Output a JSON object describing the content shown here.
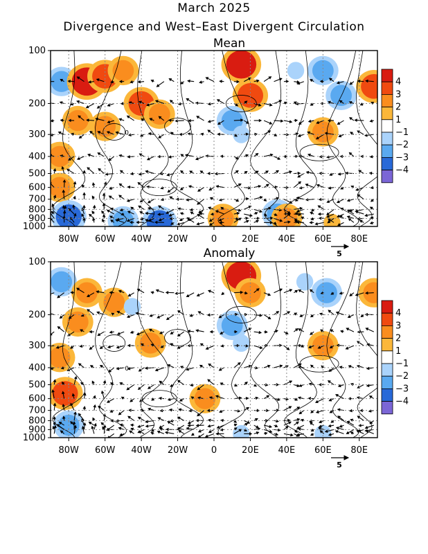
{
  "header": {
    "title": "March 2025",
    "subtitle": "Divergence and West–East Divergent Circulation"
  },
  "chart_data": [
    {
      "type": "heatmap",
      "title": "Mean",
      "x_ticks": [
        "80W",
        "60W",
        "40W",
        "20W",
        "0",
        "20E",
        "40E",
        "60E",
        "80E"
      ],
      "x_values": [
        -80,
        -60,
        -40,
        -20,
        0,
        20,
        40,
        60,
        80
      ],
      "xlim": [
        -90,
        90
      ],
      "y_ticks": [
        "100",
        "200",
        "300",
        "400",
        "500",
        "600",
        "700",
        "800",
        "900",
        "1000"
      ],
      "y_values": [
        100,
        200,
        300,
        400,
        500,
        600,
        700,
        800,
        900,
        1000
      ],
      "ylim": [
        1000,
        100
      ],
      "y_scale": "log",
      "contour_label": "0",
      "reference_vector": "5",
      "cells": [
        {
          "lon": -84,
          "p": 150,
          "v": -2
        },
        {
          "lon": -70,
          "p": 150,
          "v": 4
        },
        {
          "lon": -60,
          "p": 140,
          "v": 3
        },
        {
          "lon": -50,
          "p": 130,
          "v": 2
        },
        {
          "lon": -40,
          "p": 200,
          "v": 3
        },
        {
          "lon": -30,
          "p": 230,
          "v": 2
        },
        {
          "lon": -75,
          "p": 250,
          "v": 2
        },
        {
          "lon": -60,
          "p": 270,
          "v": 2
        },
        {
          "lon": -85,
          "p": 400,
          "v": 2
        },
        {
          "lon": -85,
          "p": 600,
          "v": 2
        },
        {
          "lon": -80,
          "p": 880,
          "v": -3
        },
        {
          "lon": -50,
          "p": 930,
          "v": -2
        },
        {
          "lon": -30,
          "p": 950,
          "v": -3
        },
        {
          "lon": 15,
          "p": 120,
          "v": 4
        },
        {
          "lon": 20,
          "p": 180,
          "v": 3
        },
        {
          "lon": 10,
          "p": 250,
          "v": -2
        },
        {
          "lon": 15,
          "p": 300,
          "v": -1
        },
        {
          "lon": 45,
          "p": 130,
          "v": -1
        },
        {
          "lon": 60,
          "p": 130,
          "v": -2
        },
        {
          "lon": 70,
          "p": 180,
          "v": -2
        },
        {
          "lon": 88,
          "p": 160,
          "v": 3
        },
        {
          "lon": 60,
          "p": 290,
          "v": 2
        },
        {
          "lon": 35,
          "p": 850,
          "v": -2
        },
        {
          "lon": 5,
          "p": 900,
          "v": 2
        },
        {
          "lon": 40,
          "p": 900,
          "v": 2
        },
        {
          "lon": 65,
          "p": 950,
          "v": 1
        }
      ]
    },
    {
      "type": "heatmap",
      "title": "Anomaly",
      "x_ticks": [
        "80W",
        "60W",
        "40W",
        "20W",
        "0",
        "20E",
        "40E",
        "60E",
        "80E"
      ],
      "x_values": [
        -80,
        -60,
        -40,
        -20,
        0,
        20,
        40,
        60,
        80
      ],
      "xlim": [
        -90,
        90
      ],
      "y_ticks": [
        "100",
        "200",
        "300",
        "400",
        "500",
        "600",
        "700",
        "800",
        "900",
        "1000"
      ],
      "y_values": [
        100,
        200,
        300,
        400,
        500,
        600,
        700,
        800,
        900,
        1000
      ],
      "ylim": [
        1000,
        100
      ],
      "y_scale": "log",
      "contour_label": "0",
      "reference_vector": "5",
      "cells": [
        {
          "lon": -84,
          "p": 130,
          "v": -2
        },
        {
          "lon": -70,
          "p": 150,
          "v": 2
        },
        {
          "lon": -55,
          "p": 170,
          "v": 2
        },
        {
          "lon": -75,
          "p": 220,
          "v": 2
        },
        {
          "lon": -85,
          "p": 350,
          "v": 2
        },
        {
          "lon": -82,
          "p": 560,
          "v": 3
        },
        {
          "lon": -45,
          "p": 180,
          "v": -1
        },
        {
          "lon": -35,
          "p": 290,
          "v": 2
        },
        {
          "lon": -5,
          "p": 600,
          "v": 2
        },
        {
          "lon": 15,
          "p": 120,
          "v": 4
        },
        {
          "lon": 20,
          "p": 150,
          "v": 2
        },
        {
          "lon": 10,
          "p": 230,
          "v": -2
        },
        {
          "lon": 15,
          "p": 290,
          "v": -1
        },
        {
          "lon": 50,
          "p": 130,
          "v": -1
        },
        {
          "lon": 62,
          "p": 150,
          "v": -2
        },
        {
          "lon": 88,
          "p": 150,
          "v": 2
        },
        {
          "lon": 60,
          "p": 300,
          "v": 2
        },
        {
          "lon": -80,
          "p": 850,
          "v": -2
        },
        {
          "lon": 15,
          "p": 950,
          "v": -1
        },
        {
          "lon": 60,
          "p": 950,
          "v": -1
        }
      ]
    }
  ],
  "colorbar": {
    "labels": [
      "4",
      "3",
      "2",
      "1",
      "−1",
      "−2",
      "−3",
      "−4"
    ],
    "colors": [
      "#d91c11",
      "#f04a10",
      "#fa8d1e",
      "#fbb73a",
      "#ffffff",
      "#aad3fb",
      "#5aa9f0",
      "#2869d8",
      "#7b66d6"
    ]
  }
}
